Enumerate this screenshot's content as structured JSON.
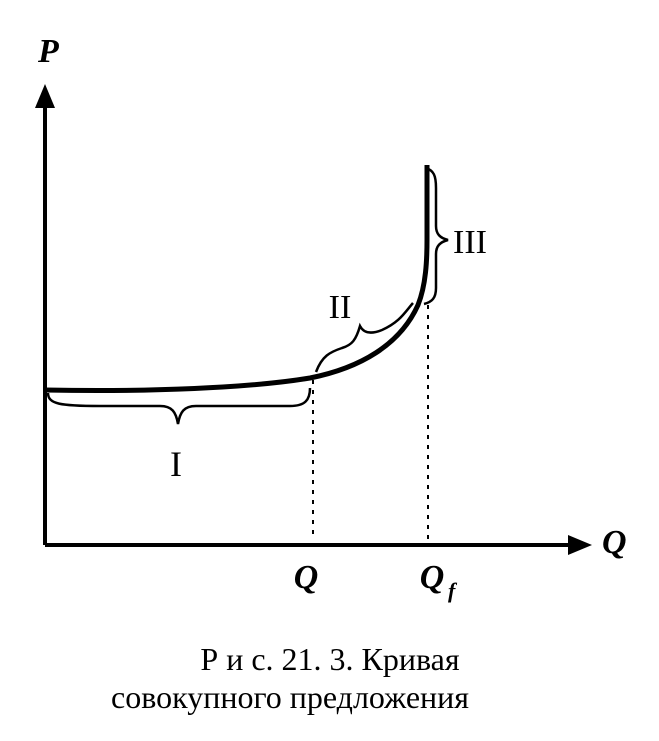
{
  "axes": {
    "y_label": "P",
    "x_label": "Q"
  },
  "ticks": [
    {
      "text": "Q"
    },
    {
      "text": "Q",
      "subscript": "f"
    }
  ],
  "segments": [
    "I",
    "II",
    "III"
  ],
  "caption": [
    "Р и с. 21. 3. Кривая",
    "совокупного предложения"
  ]
}
